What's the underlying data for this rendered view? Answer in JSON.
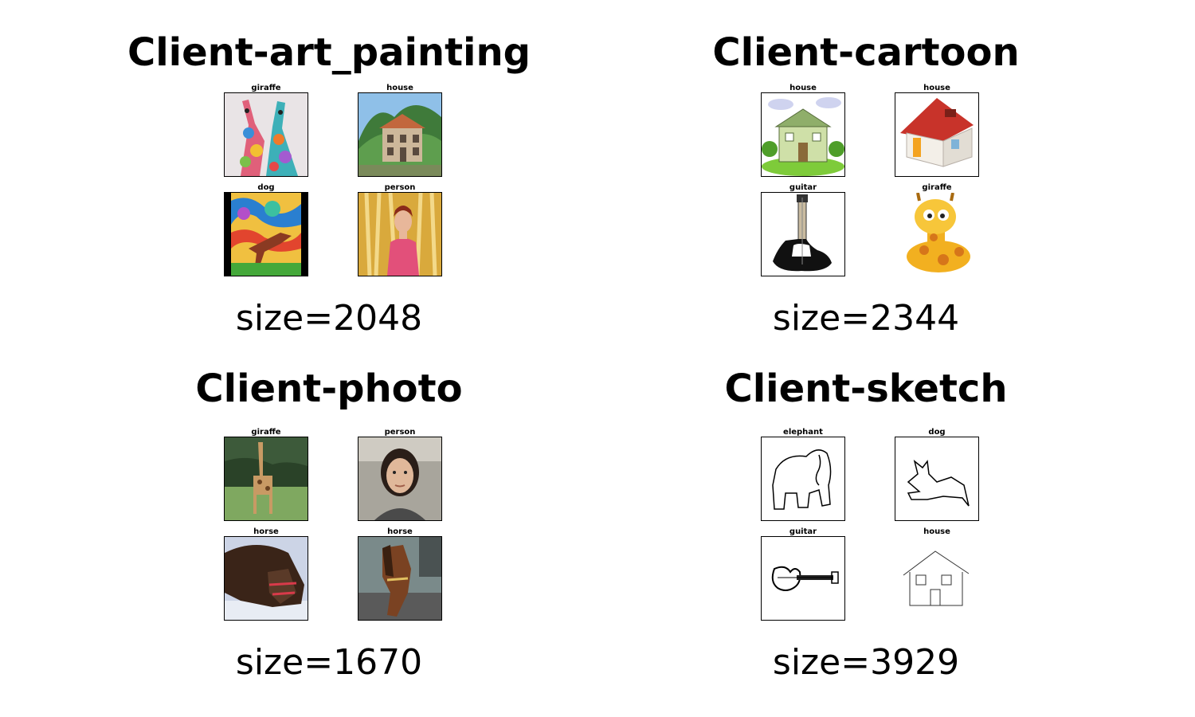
{
  "clients": [
    {
      "title": "Client-art_painting",
      "size_text": "size=2048",
      "images": [
        {
          "label": "giraffe",
          "icon": "painted-giraffe-image"
        },
        {
          "label": "house",
          "icon": "painted-house-image"
        },
        {
          "label": "dog",
          "icon": "painted-dog-image"
        },
        {
          "label": "person",
          "icon": "painted-person-image"
        }
      ]
    },
    {
      "title": "Client-cartoon",
      "size_text": "size=2344",
      "images": [
        {
          "label": "house",
          "icon": "cartoon-house-image"
        },
        {
          "label": "house",
          "icon": "cartoon-house-image"
        },
        {
          "label": "guitar",
          "icon": "cartoon-guitar-image"
        },
        {
          "label": "giraffe",
          "icon": "cartoon-giraffe-image"
        }
      ]
    },
    {
      "title": "Client-photo",
      "size_text": "size=1670",
      "images": [
        {
          "label": "giraffe",
          "icon": "photo-giraffe-image"
        },
        {
          "label": "person",
          "icon": "photo-person-image"
        },
        {
          "label": "horse",
          "icon": "photo-horse-image"
        },
        {
          "label": "horse",
          "icon": "photo-horse-image"
        }
      ]
    },
    {
      "title": "Client-sketch",
      "size_text": "size=3929",
      "images": [
        {
          "label": "elephant",
          "icon": "sketch-elephant-image"
        },
        {
          "label": "dog",
          "icon": "sketch-dog-image"
        },
        {
          "label": "guitar",
          "icon": "sketch-guitar-image"
        },
        {
          "label": "house",
          "icon": "sketch-house-image"
        }
      ]
    }
  ]
}
